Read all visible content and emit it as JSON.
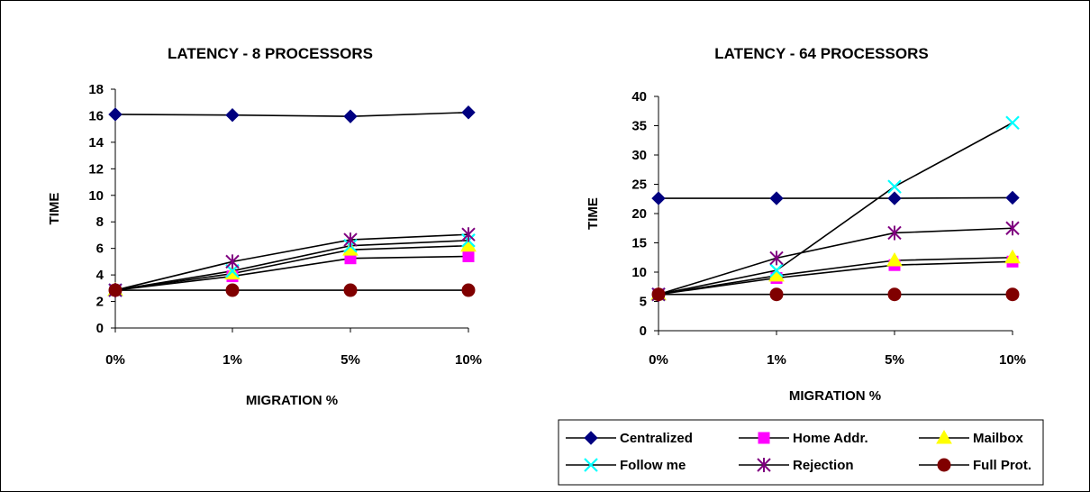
{
  "chart_data": [
    {
      "type": "line",
      "title": "LATENCY - 8 PROCESSORS",
      "xlabel": "MIGRATION %",
      "ylabel": "TIME",
      "categories": [
        "0%",
        "1%",
        "5%",
        "10%"
      ],
      "ylim": [
        0,
        18
      ],
      "yticks": [
        "0",
        "2",
        "4",
        "6",
        "8",
        "10",
        "12",
        "14",
        "16",
        "18"
      ],
      "series": [
        {
          "name": "Centralized",
          "values": [
            16.1,
            16.05,
            15.95,
            16.25
          ]
        },
        {
          "name": "Home Addr.",
          "values": [
            2.85,
            3.9,
            5.25,
            5.4
          ]
        },
        {
          "name": "Mailbox",
          "values": [
            2.85,
            4.1,
            5.9,
            6.2
          ]
        },
        {
          "name": "Follow me",
          "values": [
            2.85,
            4.3,
            6.2,
            6.6
          ]
        },
        {
          "name": "Rejection",
          "values": [
            2.85,
            5.0,
            6.65,
            7.05
          ]
        },
        {
          "name": "Full Prot.",
          "values": [
            2.85,
            2.85,
            2.85,
            2.85
          ]
        }
      ]
    },
    {
      "type": "line",
      "title": "LATENCY - 64 PROCESSORS",
      "xlabel": "MIGRATION %",
      "ylabel": "TIME",
      "categories": [
        "0%",
        "1%",
        "5%",
        "10%"
      ],
      "ylim": [
        0,
        40
      ],
      "yticks": [
        "0",
        "5",
        "10",
        "15",
        "20",
        "25",
        "30",
        "35",
        "40"
      ],
      "series": [
        {
          "name": "Centralized",
          "values": [
            22.6,
            22.6,
            22.6,
            22.7
          ]
        },
        {
          "name": "Home Addr.",
          "values": [
            6.2,
            9.0,
            11.2,
            11.8
          ]
        },
        {
          "name": "Mailbox",
          "values": [
            6.2,
            9.4,
            12.0,
            12.5
          ]
        },
        {
          "name": "Follow me",
          "values": [
            6.2,
            10.3,
            24.6,
            35.5
          ]
        },
        {
          "name": "Rejection",
          "values": [
            6.2,
            12.4,
            16.7,
            17.5
          ]
        },
        {
          "name": "Full Prot.",
          "values": [
            6.2,
            6.2,
            6.2,
            6.2
          ]
        }
      ]
    }
  ],
  "legend": {
    "placement": "bottom-right",
    "items": [
      {
        "name": "Centralized",
        "color": "#000080",
        "marker": "diamond"
      },
      {
        "name": "Home Addr.",
        "color": "#FF00FF",
        "marker": "square"
      },
      {
        "name": "Mailbox",
        "color": "#FFFF00",
        "marker": "triangle"
      },
      {
        "name": "Follow me",
        "color": "#00FFFF",
        "marker": "x"
      },
      {
        "name": "Rejection",
        "color": "#800080",
        "marker": "star"
      },
      {
        "name": "Full Prot.",
        "color": "#800000",
        "marker": "circle"
      }
    ]
  }
}
